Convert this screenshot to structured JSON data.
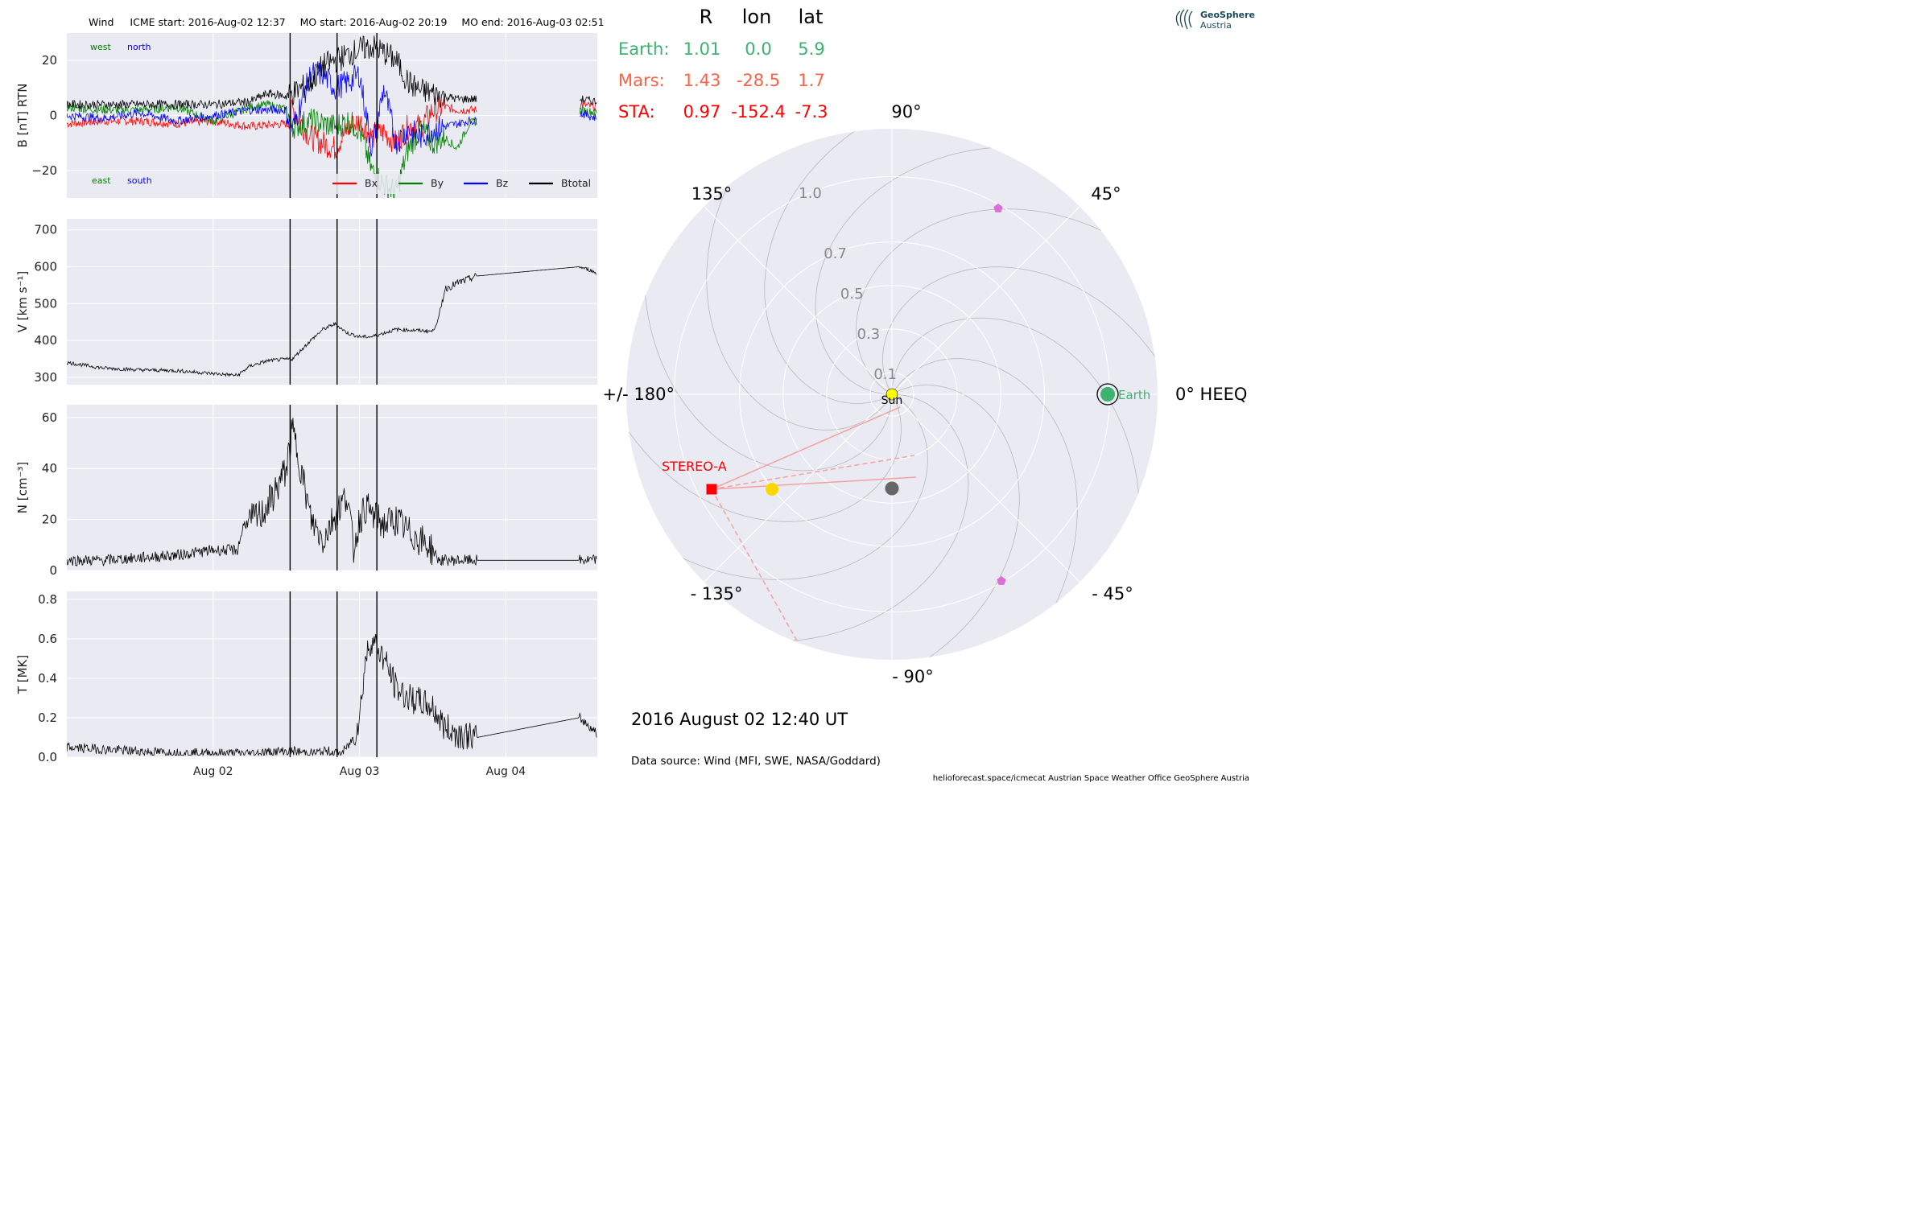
{
  "header": {
    "spacecraft": "Wind",
    "icme_start": "ICME start: 2016-Aug-02 12:37",
    "mo_start": "MO start: 2016-Aug-02 20:19",
    "mo_end": "MO end: 2016-Aug-03 02:51"
  },
  "colors": {
    "panel_bg": "#eaeaf2",
    "bx": "#ff0000",
    "by": "#008000",
    "bz": "#0000ff",
    "btotal": "#000000",
    "earth": "#3cb371",
    "mars": "#ff6347",
    "sta": "#ff0000",
    "sun": "#ffff00",
    "planet_marker": "#da70d6",
    "sta_line": "#f4a0a0",
    "grey_dot": "#666666",
    "yellow_dot": "#ffd700"
  },
  "logo": {
    "name": "GeoSphere",
    "sub": "Austria"
  },
  "footer": {
    "date": "2016 August 02  12:40 UT",
    "source": "Data source: Wind (MFI, SWE, NASA/Goddard)",
    "credits": "helioforecast.space/icmecat   Austrian Space Weather Office   GeoSphere Austria"
  },
  "chart_data": [
    {
      "type": "line",
      "panel": "B",
      "ylabel": "B [nT] RTN",
      "ylim": [
        -30,
        30
      ],
      "yticks": [
        "20",
        "0",
        "−20"
      ],
      "direction_labels": [
        "west",
        "north",
        "east",
        "south"
      ],
      "xticks": [
        "Aug 02",
        "Aug 03",
        "Aug 04"
      ],
      "event_lines": [
        "2016-08-02 12:37",
        "2016-08-02 20:19",
        "2016-08-03 02:51"
      ],
      "legend": [
        "Bx",
        "By",
        "Bz",
        "Btotal"
      ],
      "data_gap": [
        "2016-08-03 19:20",
        "2016-08-04 12:00"
      ],
      "series": [
        {
          "name": "Bx",
          "x_hours": [
            0,
            6,
            12,
            18,
            24,
            30,
            36,
            37,
            40,
            44,
            46,
            48,
            50,
            52,
            54,
            56,
            58,
            60,
            62,
            64,
            66,
            67.3,
            84,
            87
          ],
          "values": [
            -3,
            -2,
            -2,
            -3,
            -2,
            -4,
            -3,
            2,
            -8,
            -12,
            -5,
            -2,
            -8,
            -6,
            -10,
            -4,
            -4,
            2,
            3,
            2,
            2,
            2,
            4,
            3
          ]
        },
        {
          "name": "By",
          "x_hours": [
            0,
            6,
            12,
            18,
            24,
            30,
            33,
            36,
            37,
            40,
            44,
            46,
            48,
            50,
            52,
            54,
            56,
            58,
            60,
            62,
            64,
            66,
            67.3,
            84,
            87
          ],
          "values": [
            3,
            2,
            2,
            3,
            -2,
            3,
            4,
            2,
            -4,
            -2,
            -4,
            -2,
            -5,
            -20,
            -25,
            -28,
            -12,
            -5,
            -10,
            -8,
            -12,
            -3,
            -2,
            2,
            1
          ]
        },
        {
          "name": "Bz",
          "x_hours": [
            0,
            6,
            12,
            18,
            24,
            30,
            36,
            37,
            40,
            42,
            44,
            46,
            48,
            50,
            52,
            54,
            56,
            58,
            60,
            62,
            64,
            66,
            67.3,
            84,
            87
          ],
          "values": [
            0,
            -1,
            1,
            -2,
            0,
            2,
            2,
            -5,
            15,
            15,
            10,
            12,
            15,
            -12,
            10,
            -10,
            -5,
            -8,
            -5,
            -4,
            -3,
            -2,
            -2,
            1,
            -1
          ]
        },
        {
          "name": "Btotal",
          "x_hours": [
            0,
            6,
            12,
            18,
            24,
            30,
            33,
            36,
            37,
            40,
            42,
            44,
            46,
            48,
            50,
            52,
            54,
            55,
            56,
            58,
            60,
            62,
            64,
            66,
            67.3,
            84,
            87
          ],
          "values": [
            4,
            4,
            4,
            4,
            4,
            5,
            8,
            7,
            8,
            12,
            18,
            20,
            22,
            24,
            25,
            23,
            20,
            16,
            12,
            9,
            8,
            7,
            6,
            6,
            6,
            6,
            5
          ]
        }
      ]
    },
    {
      "type": "line",
      "panel": "V",
      "ylabel": "V [km s⁻¹]",
      "ylim": [
        280,
        730
      ],
      "yticks": [
        "700",
        "600",
        "500",
        "400",
        "300"
      ],
      "series": [
        {
          "name": "V",
          "x_hours": [
            0,
            6,
            12,
            18,
            24,
            28,
            30,
            33,
            37,
            40,
            42,
            44,
            46,
            48,
            50,
            54,
            60,
            61,
            62,
            64,
            67.3,
            84,
            86,
            87
          ],
          "values": [
            340,
            325,
            320,
            318,
            310,
            305,
            330,
            345,
            350,
            400,
            430,
            445,
            420,
            410,
            410,
            430,
            425,
            460,
            540,
            555,
            575,
            600,
            590,
            580
          ]
        }
      ]
    },
    {
      "type": "line",
      "panel": "N",
      "ylabel": "N [cm⁻³]",
      "ylim": [
        0,
        65
      ],
      "yticks": [
        "60",
        "40",
        "20",
        "0"
      ],
      "series": [
        {
          "name": "N",
          "x_hours": [
            0,
            6,
            12,
            18,
            24,
            28,
            29,
            32,
            34,
            36,
            37,
            38,
            40,
            42,
            44,
            46,
            47,
            48,
            49,
            50,
            52,
            54,
            56,
            58,
            60,
            61,
            62,
            67.3,
            84,
            87
          ],
          "values": [
            4,
            4,
            5,
            6,
            8,
            8,
            18,
            22,
            30,
            40,
            55,
            45,
            20,
            12,
            22,
            30,
            8,
            20,
            25,
            22,
            18,
            20,
            15,
            12,
            8,
            4,
            4,
            4,
            4,
            4
          ]
        }
      ]
    },
    {
      "type": "line",
      "panel": "T",
      "ylabel": "T [MK]",
      "ylim": [
        0,
        0.84
      ],
      "yticks": [
        "0.8",
        "0.6",
        "0.4",
        "0.2",
        "0.0"
      ],
      "series": [
        {
          "name": "T",
          "x_hours": [
            0,
            6,
            12,
            18,
            24,
            30,
            36,
            37,
            40,
            43,
            44,
            45,
            46,
            47,
            48,
            49,
            50,
            52,
            54,
            56,
            58,
            60,
            62,
            64,
            67.3,
            84,
            86,
            87
          ],
          "values": [
            0.05,
            0.04,
            0.03,
            0.02,
            0.02,
            0.02,
            0.03,
            0.03,
            0.02,
            0.03,
            0.02,
            0.02,
            0.05,
            0.1,
            0.2,
            0.5,
            0.6,
            0.5,
            0.35,
            0.3,
            0.28,
            0.25,
            0.15,
            0.12,
            0.1,
            0.2,
            0.15,
            0.12
          ]
        }
      ]
    },
    {
      "type": "scatter",
      "panel": "polar",
      "projection": "polar",
      "coordinate_system": "0° HEEQ",
      "angle_labels": [
        "90°",
        "45°",
        "0° HEEQ",
        "- 45°",
        "- 90°",
        "- 135°",
        "+/- 180°",
        "135°"
      ],
      "radius_labels": [
        "0.1",
        "0.3",
        "0.5",
        "0.7",
        "1.0"
      ],
      "table_header": [
        "R",
        "lon",
        "lat"
      ],
      "table": [
        {
          "name": "Earth:",
          "R": "1.01",
          "lon": "0.0",
          "lat": "5.9"
        },
        {
          "name": "Mars:",
          "R": "1.43",
          "lon": "-28.5",
          "lat": "1.7"
        },
        {
          "name": "STA:",
          "R": "0.97",
          "lon": "-152.4",
          "lat": "-7.3"
        }
      ],
      "labels": {
        "earth": "Earth",
        "sun": "Sun",
        "stereo_a": "STEREO-A"
      }
    }
  ]
}
